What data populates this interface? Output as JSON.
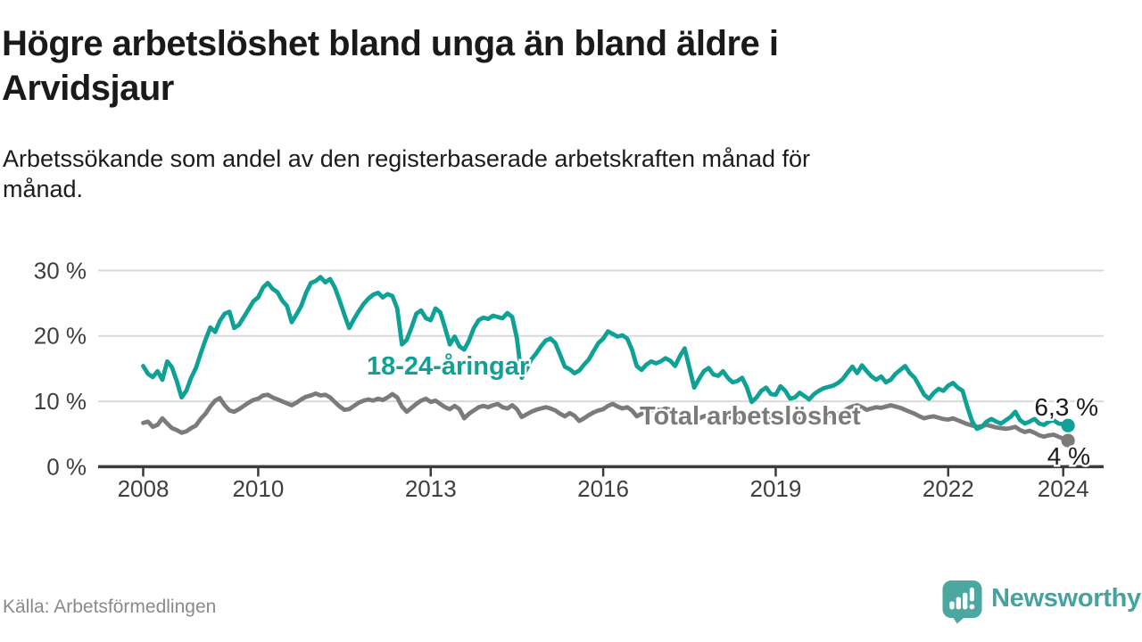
{
  "header": {
    "title": "Högre arbetslöshet bland unga än bland äldre i Arvidsjaur",
    "title_lines": [
      "Högre arbetslöshet bland unga än bland äldre i",
      "Arvidsjaur"
    ],
    "subtitle": "Arbetssökande som andel av den registerbaserade arbetskraften månad för månad.",
    "subtitle_lines": [
      "Arbetssökande som andel av den registerbaserade arbetskraften månad för",
      "månad."
    ]
  },
  "footer": {
    "source": "Källa: Arbetsförmedlingen",
    "logo_text": "Newsworthy",
    "logo_color": "#4ba7a0"
  },
  "colors": {
    "young_series": "#0fa195",
    "total_series": "#7b7b7b",
    "end_label_text": "#1a1a1a",
    "grid": "#d9d9d9",
    "axis": "#3b3b3b"
  },
  "chart_data": {
    "type": "line",
    "title": "Högre arbetslöshet bland unga än bland äldre i Arvidsjaur",
    "subtitle": "Arbetssökande som andel av den registerbaserade arbetskraften månad för månad.",
    "x_start": "2008-01",
    "x_end": "2024-02",
    "x_unit": "month",
    "y_unit": "%",
    "ylim": [
      0,
      31
    ],
    "grid": "horizontal",
    "legend_position": "inline-labels",
    "x_ticks": [
      2008,
      2010,
      2013,
      2016,
      2019,
      2022,
      2024
    ],
    "y_ticks": [
      {
        "value": 0,
        "label": "0 %"
      },
      {
        "value": 10,
        "label": "10 %"
      },
      {
        "value": 20,
        "label": "20 %"
      },
      {
        "value": 30,
        "label": "30 %"
      }
    ],
    "series": [
      {
        "id": "total",
        "name": "Total arbetslöshet",
        "color": "#7b7b7b",
        "end_label": "4 %",
        "last_value": 4.0,
        "values": [
          6.7,
          6.9,
          6.1,
          6.4,
          7.4,
          6.6,
          5.9,
          5.6,
          5.2,
          5.4,
          5.9,
          6.3,
          7.3,
          8.1,
          9.2,
          10.1,
          10.5,
          9.4,
          8.6,
          8.4,
          8.8,
          9.3,
          9.8,
          10.2,
          10.4,
          10.9,
          11.0,
          10.6,
          10.3,
          10.0,
          9.7,
          9.4,
          9.8,
          10.3,
          10.7,
          10.9,
          11.2,
          10.9,
          11.0,
          10.6,
          9.9,
          9.2,
          8.7,
          8.8,
          9.3,
          9.8,
          10.1,
          10.3,
          10.1,
          10.4,
          10.2,
          10.6,
          11.1,
          10.6,
          9.2,
          8.4,
          9.0,
          9.6,
          10.1,
          10.4,
          9.9,
          10.1,
          9.6,
          9.1,
          8.8,
          9.3,
          8.8,
          7.4,
          8.1,
          8.6,
          9.1,
          9.3,
          9.1,
          9.4,
          9.6,
          9.1,
          8.9,
          9.4,
          8.8,
          7.6,
          8.0,
          8.4,
          8.7,
          8.9,
          9.1,
          8.9,
          8.6,
          8.1,
          7.7,
          8.2,
          7.8,
          7.0,
          7.4,
          7.9,
          8.3,
          8.6,
          8.8,
          9.3,
          9.6,
          9.2,
          8.9,
          9.1,
          8.6,
          7.7,
          8.1,
          8.4,
          8.6,
          8.8,
          8.6,
          8.9,
          8.7,
          8.3,
          8.1,
          8.4,
          7.9,
          7.1,
          7.4,
          7.7,
          7.9,
          8.1,
          7.9,
          8.1,
          7.8,
          7.4,
          7.2,
          7.5,
          7.1,
          6.6,
          6.9,
          7.2,
          7.4,
          7.6,
          7.4,
          7.7,
          7.5,
          7.2,
          7.0,
          7.3,
          7.1,
          6.8,
          7.1,
          7.4,
          7.6,
          7.8,
          7.9,
          8.1,
          8.4,
          8.9,
          9.2,
          9.4,
          9.1,
          8.7,
          8.9,
          9.1,
          9.0,
          9.2,
          9.4,
          9.2,
          9.0,
          8.7,
          8.4,
          8.1,
          7.7,
          7.4,
          7.6,
          7.7,
          7.5,
          7.3,
          7.2,
          7.4,
          7.1,
          6.8,
          6.5,
          6.3,
          6.1,
          6.2,
          6.4,
          6.2,
          6.0,
          5.9,
          5.8,
          5.9,
          6.1,
          5.6,
          5.3,
          5.5,
          5.2,
          4.8,
          4.6,
          4.8,
          4.9,
          4.6,
          4.3,
          4.0
        ]
      },
      {
        "id": "young",
        "name": "18-24-åringar",
        "color": "#0fa195",
        "end_label": "6,3 %",
        "last_value": 6.3,
        "values": [
          15.4,
          14.2,
          13.7,
          14.6,
          13.3,
          16.1,
          15.2,
          13.1,
          10.6,
          11.6,
          13.6,
          15.1,
          17.3,
          19.4,
          21.3,
          20.6,
          22.3,
          23.4,
          23.7,
          21.2,
          21.7,
          22.9,
          24.1,
          25.3,
          25.9,
          27.4,
          28.1,
          27.2,
          26.7,
          25.4,
          24.6,
          22.1,
          23.3,
          24.6,
          26.6,
          28.1,
          28.4,
          29.0,
          28.2,
          28.7,
          27.4,
          25.4,
          23.2,
          21.2,
          22.6,
          23.8,
          24.9,
          25.7,
          26.3,
          26.6,
          25.9,
          26.4,
          26.1,
          24.2,
          18.7,
          19.4,
          21.3,
          23.4,
          23.9,
          22.7,
          22.4,
          24.2,
          23.6,
          21.2,
          18.7,
          19.9,
          18.4,
          17.9,
          19.3,
          21.2,
          22.4,
          22.8,
          22.6,
          23.1,
          22.9,
          22.7,
          23.5,
          22.9,
          19.6,
          13.6,
          14.9,
          16.4,
          17.3,
          18.4,
          19.3,
          19.6,
          18.9,
          17.1,
          15.3,
          14.9,
          14.3,
          14.7,
          15.6,
          16.4,
          17.7,
          18.9,
          19.6,
          20.7,
          20.3,
          19.9,
          20.1,
          19.6,
          17.9,
          15.4,
          14.8,
          15.6,
          16.1,
          15.8,
          16.1,
          16.6,
          16.2,
          15.4,
          16.9,
          18.1,
          15.1,
          12.1,
          13.4,
          14.6,
          15.1,
          14.1,
          13.9,
          14.6,
          13.6,
          12.9,
          13.1,
          13.6,
          12.1,
          9.9,
          10.6,
          11.6,
          12.1,
          11.1,
          11.0,
          12.3,
          11.6,
          10.4,
          10.6,
          11.3,
          10.8,
          10.3,
          11.1,
          11.6,
          12.0,
          12.2,
          12.4,
          12.8,
          13.4,
          14.4,
          15.3,
          14.3,
          15.5,
          14.6,
          13.8,
          13.3,
          13.8,
          12.9,
          13.3,
          14.2,
          14.8,
          15.4,
          14.3,
          13.6,
          12.3,
          11.0,
          10.4,
          11.3,
          11.9,
          11.6,
          12.4,
          12.8,
          12.1,
          11.6,
          9.1,
          6.9,
          5.8,
          6.1,
          6.9,
          7.3,
          6.9,
          6.6,
          7.1,
          7.6,
          8.4,
          7.1,
          6.6,
          6.9,
          7.3,
          6.6,
          6.4,
          6.9,
          7.1,
          6.6,
          6.5,
          6.3
        ]
      }
    ]
  }
}
